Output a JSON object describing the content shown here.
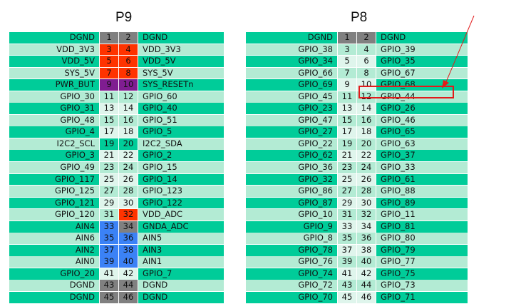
{
  "headers": {
    "p9": "P9",
    "p8": "P8"
  },
  "colors": {
    "teal": "#00cc99",
    "mint": "#b3ebd4",
    "gray": "#808080",
    "red": "#ff3300",
    "purple": "#7f1d91",
    "blue": "#3b82f6",
    "light": "#dff5ec",
    "highlight": "#e21b1b"
  },
  "p9_rows": [
    {
      "left": "DGND",
      "n1": "1",
      "n2": "2",
      "right": "DGND",
      "lc": "teal",
      "c1": "gray",
      "c2": "gray",
      "rc": "teal"
    },
    {
      "left": "VDD_3V3",
      "n1": "3",
      "n2": "4",
      "right": "VDD_3V3",
      "lc": "mint",
      "c1": "red",
      "c2": "red",
      "rc": "mint"
    },
    {
      "left": "VDD_5V",
      "n1": "5",
      "n2": "6",
      "right": "VDD_5V",
      "lc": "teal",
      "c1": "red",
      "c2": "red",
      "rc": "teal"
    },
    {
      "left": "SYS_5V",
      "n1": "7",
      "n2": "8",
      "right": "SYS_5V",
      "lc": "mint",
      "c1": "red",
      "c2": "red",
      "rc": "mint"
    },
    {
      "left": "PWR_BUT",
      "n1": "9",
      "n2": "10",
      "right": "SYS_RESETn",
      "lc": "teal",
      "c1": "purple",
      "c2": "purple",
      "rc": "teal"
    },
    {
      "left": "GPIO_30",
      "n1": "11",
      "n2": "12",
      "right": "GPIO_60",
      "lc": "mint",
      "c1": "mint",
      "c2": "mint",
      "rc": "mint"
    },
    {
      "left": "GPIO_31",
      "n1": "13",
      "n2": "14",
      "right": "GPIO_40",
      "lc": "teal",
      "c1": "light",
      "c2": "light",
      "rc": "teal"
    },
    {
      "left": "GPIO_48",
      "n1": "15",
      "n2": "16",
      "right": "GPIO_51",
      "lc": "mint",
      "c1": "mint",
      "c2": "mint",
      "rc": "mint"
    },
    {
      "left": "GPIO_4",
      "n1": "17",
      "n2": "18",
      "right": "GPIO_5",
      "lc": "teal",
      "c1": "light",
      "c2": "light",
      "rc": "teal"
    },
    {
      "left": "I2C2_SCL",
      "n1": "19",
      "n2": "20",
      "right": "I2C2_SDA",
      "lc": "mint",
      "c1": "teal",
      "c2": "teal",
      "rc": "mint"
    },
    {
      "left": "GPIO_3",
      "n1": "21",
      "n2": "22",
      "right": "GPIO_2",
      "lc": "teal",
      "c1": "light",
      "c2": "light",
      "rc": "teal"
    },
    {
      "left": "GPIO_49",
      "n1": "23",
      "n2": "24",
      "right": "GPIO_15",
      "lc": "mint",
      "c1": "mint",
      "c2": "mint",
      "rc": "mint"
    },
    {
      "left": "GPIO_117",
      "n1": "25",
      "n2": "26",
      "right": "GPIO_14",
      "lc": "teal",
      "c1": "light",
      "c2": "light",
      "rc": "teal"
    },
    {
      "left": "GPIO_125",
      "n1": "27",
      "n2": "28",
      "right": "GPIO_123",
      "lc": "mint",
      "c1": "mint",
      "c2": "mint",
      "rc": "mint"
    },
    {
      "left": "GPIO_121",
      "n1": "29",
      "n2": "30",
      "right": "GPIO_122",
      "lc": "teal",
      "c1": "light",
      "c2": "light",
      "rc": "teal"
    },
    {
      "left": "GPIO_120",
      "n1": "31",
      "n2": "32",
      "right": "VDD_ADC",
      "lc": "mint",
      "c1": "mint",
      "c2": "red",
      "rc": "mint"
    },
    {
      "left": "AIN4",
      "n1": "33",
      "n2": "34",
      "right": "GNDA_ADC",
      "lc": "teal",
      "c1": "blue",
      "c2": "gray",
      "rc": "teal"
    },
    {
      "left": "AIN6",
      "n1": "35",
      "n2": "36",
      "right": "AIN5",
      "lc": "mint",
      "c1": "blue",
      "c2": "blue",
      "rc": "mint"
    },
    {
      "left": "AIN2",
      "n1": "37",
      "n2": "38",
      "right": "AIN3",
      "lc": "teal",
      "c1": "blue",
      "c2": "blue",
      "rc": "teal"
    },
    {
      "left": "AIN0",
      "n1": "39",
      "n2": "40",
      "right": "AIN1",
      "lc": "mint",
      "c1": "blue",
      "c2": "blue",
      "rc": "mint"
    },
    {
      "left": "GPIO_20",
      "n1": "41",
      "n2": "42",
      "right": "GPIO_7",
      "lc": "teal",
      "c1": "light",
      "c2": "light",
      "rc": "teal"
    },
    {
      "left": "DGND",
      "n1": "43",
      "n2": "44",
      "right": "DGND",
      "lc": "mint",
      "c1": "gray",
      "c2": "gray",
      "rc": "mint"
    },
    {
      "left": "DGND",
      "n1": "45",
      "n2": "46",
      "right": "DGND",
      "lc": "teal",
      "c1": "gray",
      "c2": "gray",
      "rc": "teal"
    }
  ],
  "p8_rows": [
    {
      "left": "DGND",
      "n1": "1",
      "n2": "2",
      "right": "DGND",
      "lc": "teal",
      "c1": "gray",
      "c2": "gray",
      "rc": "teal"
    },
    {
      "left": "GPIO_38",
      "n1": "3",
      "n2": "4",
      "right": "GPIO_39",
      "lc": "mint",
      "c1": "mint",
      "c2": "mint",
      "rc": "mint"
    },
    {
      "left": "GPIO_34",
      "n1": "5",
      "n2": "6",
      "right": "GPIO_35",
      "lc": "teal",
      "c1": "light",
      "c2": "light",
      "rc": "teal"
    },
    {
      "left": "GPIO_66",
      "n1": "7",
      "n2": "8",
      "right": "GPIO_67",
      "lc": "mint",
      "c1": "mint",
      "c2": "mint",
      "rc": "mint"
    },
    {
      "left": "GPIO_69",
      "n1": "9",
      "n2": "10",
      "right": "GPIO_68",
      "lc": "teal",
      "c1": "light",
      "c2": "light",
      "rc": "teal"
    },
    {
      "left": "GPIO_45",
      "n1": "11",
      "n2": "12",
      "right": "GPIO_44",
      "lc": "mint",
      "c1": "mint",
      "c2": "mint",
      "rc": "mint"
    },
    {
      "left": "GPIO_23",
      "n1": "13",
      "n2": "14",
      "right": "GPIO_26",
      "lc": "teal",
      "c1": "light",
      "c2": "light",
      "rc": "teal"
    },
    {
      "left": "GPIO_47",
      "n1": "15",
      "n2": "16",
      "right": "GPIO_46",
      "lc": "mint",
      "c1": "mint",
      "c2": "mint",
      "rc": "mint"
    },
    {
      "left": "GPIO_27",
      "n1": "17",
      "n2": "18",
      "right": "GPIO_65",
      "lc": "teal",
      "c1": "light",
      "c2": "light",
      "rc": "teal"
    },
    {
      "left": "GPIO_22",
      "n1": "19",
      "n2": "20",
      "right": "GPIO_63",
      "lc": "mint",
      "c1": "mint",
      "c2": "mint",
      "rc": "mint"
    },
    {
      "left": "GPIO_62",
      "n1": "21",
      "n2": "22",
      "right": "GPIO_37",
      "lc": "teal",
      "c1": "light",
      "c2": "light",
      "rc": "teal"
    },
    {
      "left": "GPIO_36",
      "n1": "23",
      "n2": "24",
      "right": "GPIO_33",
      "lc": "mint",
      "c1": "mint",
      "c2": "mint",
      "rc": "mint"
    },
    {
      "left": "GPIO_32",
      "n1": "25",
      "n2": "26",
      "right": "GPIO_61",
      "lc": "teal",
      "c1": "light",
      "c2": "light",
      "rc": "teal"
    },
    {
      "left": "GPIO_86",
      "n1": "27",
      "n2": "28",
      "right": "GPIO_88",
      "lc": "mint",
      "c1": "mint",
      "c2": "mint",
      "rc": "mint"
    },
    {
      "left": "GPIO_87",
      "n1": "29",
      "n2": "30",
      "right": "GPIO_89",
      "lc": "teal",
      "c1": "light",
      "c2": "light",
      "rc": "teal"
    },
    {
      "left": "GPIO_10",
      "n1": "31",
      "n2": "32",
      "right": "GPIO_11",
      "lc": "mint",
      "c1": "mint",
      "c2": "mint",
      "rc": "mint"
    },
    {
      "left": "GPIO_9",
      "n1": "33",
      "n2": "34",
      "right": "GPIO_81",
      "lc": "teal",
      "c1": "light",
      "c2": "light",
      "rc": "teal"
    },
    {
      "left": "GPIO_8",
      "n1": "35",
      "n2": "36",
      "right": "GPIO_80",
      "lc": "mint",
      "c1": "mint",
      "c2": "mint",
      "rc": "mint"
    },
    {
      "left": "GPIO_78",
      "n1": "37",
      "n2": "38",
      "right": "GPIO_79",
      "lc": "teal",
      "c1": "light",
      "c2": "light",
      "rc": "teal"
    },
    {
      "left": "GPIO_76",
      "n1": "39",
      "n2": "40",
      "right": "GPIO_77",
      "lc": "mint",
      "c1": "mint",
      "c2": "mint",
      "rc": "mint"
    },
    {
      "left": "GPIO_74",
      "n1": "41",
      "n2": "42",
      "right": "GPIO_75",
      "lc": "teal",
      "c1": "light",
      "c2": "light",
      "rc": "teal"
    },
    {
      "left": "GPIO_72",
      "n1": "43",
      "n2": "44",
      "right": "GPIO_73",
      "lc": "mint",
      "c1": "mint",
      "c2": "mint",
      "rc": "mint"
    },
    {
      "left": "GPIO_70",
      "n1": "45",
      "n2": "46",
      "right": "GPIO_71",
      "lc": "teal",
      "c1": "light",
      "c2": "light",
      "rc": "teal"
    }
  ]
}
